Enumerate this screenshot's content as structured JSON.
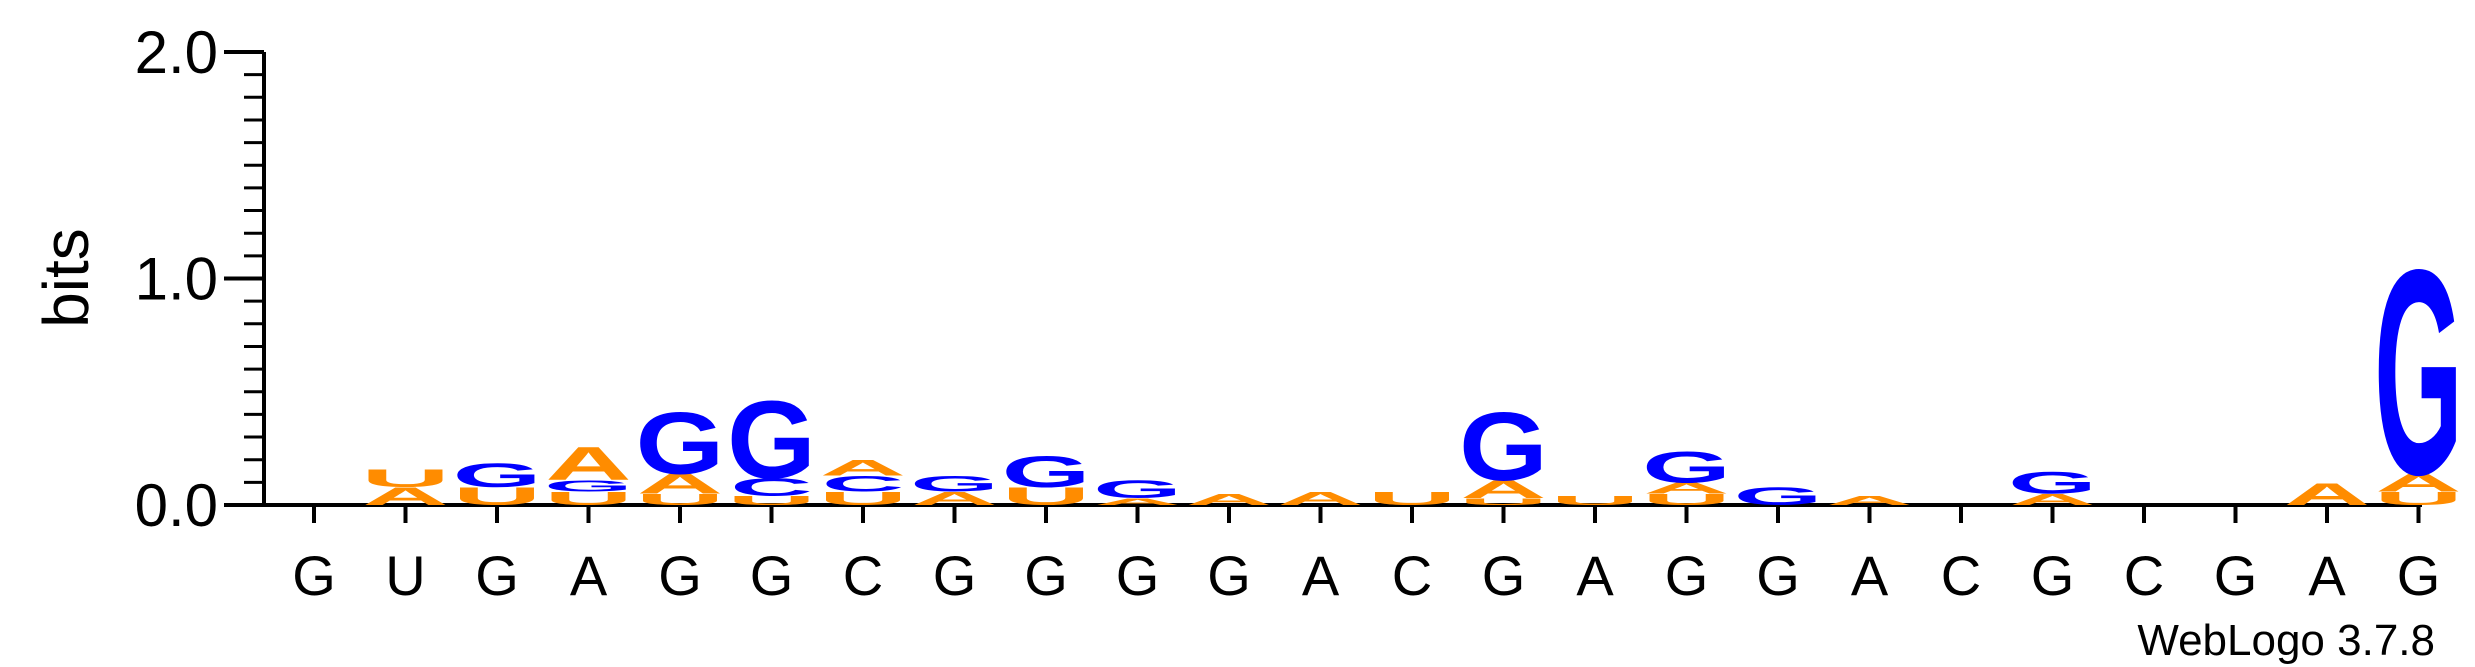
{
  "chart_data": {
    "type": "sequence-logo",
    "ylabel": "bits",
    "ylim": [
      0,
      2.0
    ],
    "yticks": [
      "0.0",
      "1.0",
      "2.0"
    ],
    "colors": {
      "G": "#0000ff",
      "A": "#ff8c00",
      "U": "#ff8c00",
      "C": "#0000ff"
    },
    "positions": [
      {
        "label": "G",
        "stack": []
      },
      {
        "label": "U",
        "stack": [
          [
            "A",
            0.08
          ],
          [
            "U",
            0.08
          ]
        ]
      },
      {
        "label": "G",
        "stack": [
          [
            "U",
            0.08
          ],
          [
            "G",
            0.11
          ]
        ]
      },
      {
        "label": "A",
        "stack": [
          [
            "U",
            0.06
          ],
          [
            "G",
            0.05
          ],
          [
            "A",
            0.15
          ]
        ]
      },
      {
        "label": "G",
        "stack": [
          [
            "U",
            0.05
          ],
          [
            "A",
            0.09
          ],
          [
            "G",
            0.28
          ]
        ]
      },
      {
        "label": "G",
        "stack": [
          [
            "U",
            0.04
          ],
          [
            "C",
            0.08
          ],
          [
            "G",
            0.35
          ]
        ]
      },
      {
        "label": "C",
        "stack": [
          [
            "U",
            0.06
          ],
          [
            "C",
            0.07
          ],
          [
            "A",
            0.07
          ]
        ]
      },
      {
        "label": "G",
        "stack": [
          [
            "A",
            0.06
          ],
          [
            "G",
            0.07
          ]
        ]
      },
      {
        "label": "G",
        "stack": [
          [
            "U",
            0.08
          ],
          [
            "G",
            0.14
          ]
        ]
      },
      {
        "label": "G",
        "stack": [
          [
            "A",
            0.03
          ],
          [
            "G",
            0.08
          ]
        ]
      },
      {
        "label": "G",
        "stack": [
          [
            "A",
            0.05
          ]
        ]
      },
      {
        "label": "A",
        "stack": [
          [
            "A",
            0.06
          ]
        ]
      },
      {
        "label": "C",
        "stack": [
          [
            "U",
            0.06
          ]
        ]
      },
      {
        "label": "G",
        "stack": [
          [
            "U",
            0.03
          ],
          [
            "A",
            0.08
          ],
          [
            "G",
            0.31
          ]
        ]
      },
      {
        "label": "A",
        "stack": [
          [
            "U",
            0.04
          ]
        ]
      },
      {
        "label": "G",
        "stack": [
          [
            "U",
            0.05
          ],
          [
            "A",
            0.05
          ],
          [
            "G",
            0.14
          ]
        ]
      },
      {
        "label": "G",
        "stack": [
          [
            "G",
            0.08
          ]
        ]
      },
      {
        "label": "A",
        "stack": [
          [
            "A",
            0.04
          ]
        ]
      },
      {
        "label": "C",
        "stack": []
      },
      {
        "label": "G",
        "stack": [
          [
            "A",
            0.05
          ],
          [
            "G",
            0.1
          ]
        ]
      },
      {
        "label": "C",
        "stack": []
      },
      {
        "label": "G",
        "stack": []
      },
      {
        "label": "A",
        "stack": [
          [
            "A",
            0.1
          ]
        ]
      },
      {
        "label": "G",
        "stack": [
          [
            "U",
            0.06
          ],
          [
            "A",
            0.08
          ],
          [
            "G",
            0.93
          ]
        ]
      }
    ]
  },
  "credit": "WebLogo 3.7.8"
}
